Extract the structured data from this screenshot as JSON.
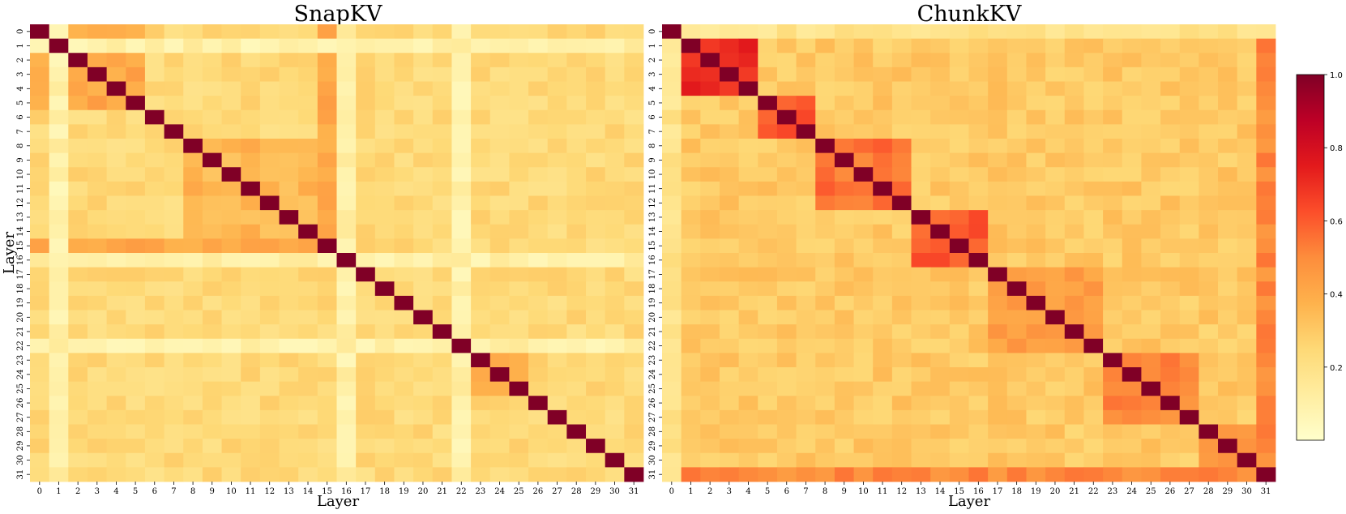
{
  "figure": {
    "description_colormap": "YlOrRd"
  },
  "colors": {
    "scale": [
      "#ffffcc",
      "#ffeda0",
      "#fed976",
      "#feb24c",
      "#fd8d3c",
      "#fc4e2a",
      "#e31a1c",
      "#bd0026",
      "#800026"
    ]
  },
  "colorbar": {
    "min": 0.0,
    "max": 1.0,
    "ticks": [
      "0.2",
      "0.4",
      "0.6",
      "0.8",
      "1.0"
    ]
  },
  "chart_data": [
    {
      "type": "heatmap",
      "title": "SnapKV",
      "xlabel": "Layer",
      "ylabel": "Layer",
      "x_ticks": [
        "0",
        "1",
        "2",
        "3",
        "4",
        "5",
        "6",
        "7",
        "8",
        "9",
        "10",
        "11",
        "12",
        "13",
        "14",
        "15",
        "16",
        "17",
        "18",
        "19",
        "20",
        "21",
        "22",
        "23",
        "24",
        "25",
        "26",
        "27",
        "28",
        "29",
        "30",
        "31"
      ],
      "y_ticks": [
        "0",
        "1",
        "2",
        "3",
        "4",
        "5",
        "6",
        "7",
        "8",
        "9",
        "10",
        "11",
        "12",
        "13",
        "14",
        "15",
        "16",
        "17",
        "18",
        "19",
        "20",
        "21",
        "22",
        "23",
        "24",
        "25",
        "26",
        "27",
        "28",
        "29",
        "30",
        "31"
      ],
      "model": {
        "diag": 1.0,
        "base": 0.24,
        "low_layers": [
          1,
          16,
          22
        ],
        "low_value": 0.1,
        "blocks": [
          {
            "from": 0,
            "to": 5,
            "value": 0.42
          },
          {
            "from": 8,
            "to": 14,
            "value": 0.36
          },
          {
            "from": 23,
            "to": 25,
            "value": 0.38
          }
        ],
        "hub_rows": [
          {
            "layer": 15,
            "cols_from": 0,
            "cols_to": 14,
            "value": 0.42
          }
        ]
      }
    },
    {
      "type": "heatmap",
      "title": "ChunkKV",
      "xlabel": "Layer",
      "ylabel": "",
      "x_ticks": [
        "0",
        "1",
        "2",
        "3",
        "4",
        "5",
        "6",
        "7",
        "8",
        "9",
        "10",
        "11",
        "12",
        "13",
        "14",
        "15",
        "16",
        "17",
        "18",
        "19",
        "20",
        "21",
        "22",
        "23",
        "24",
        "25",
        "26",
        "27",
        "28",
        "29",
        "30",
        "31"
      ],
      "y_ticks": [
        "0",
        "1",
        "2",
        "3",
        "4",
        "5",
        "6",
        "7",
        "8",
        "9",
        "10",
        "11",
        "12",
        "13",
        "14",
        "15",
        "16",
        "17",
        "18",
        "19",
        "20",
        "21",
        "22",
        "23",
        "24",
        "25",
        "26",
        "27",
        "28",
        "29",
        "30",
        "31"
      ],
      "model": {
        "diag": 1.0,
        "base": 0.3,
        "low_layers": [
          0
        ],
        "low_value": 0.18,
        "blocks": [
          {
            "from": 0,
            "to": 4,
            "value": 0.72
          },
          {
            "from": 5,
            "to": 7,
            "value": 0.62
          },
          {
            "from": 8,
            "to": 12,
            "value": 0.55
          },
          {
            "from": 13,
            "to": 16,
            "value": 0.6
          },
          {
            "from": 17,
            "to": 22,
            "value": 0.45
          },
          {
            "from": 23,
            "to": 27,
            "value": 0.5
          },
          {
            "from": 28,
            "to": 30,
            "value": 0.48
          }
        ],
        "hub_rows": [
          {
            "layer": 31,
            "cols_from": 0,
            "cols_to": 30,
            "value": 0.5
          }
        ]
      }
    }
  ]
}
